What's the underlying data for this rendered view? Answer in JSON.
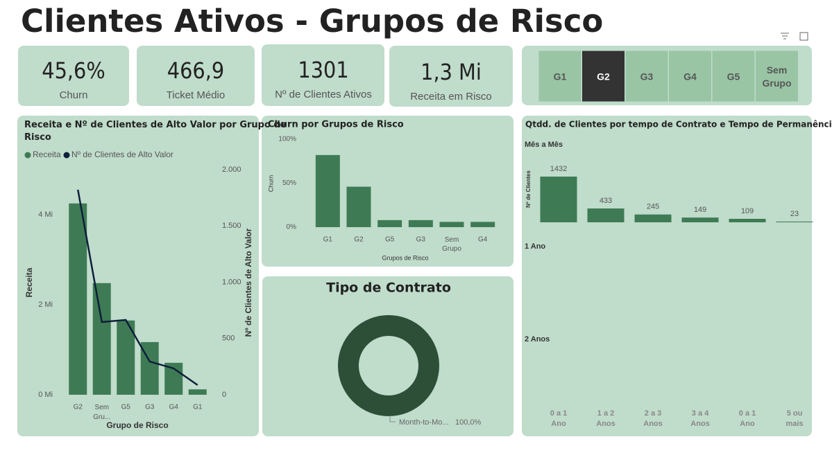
{
  "title": "Clientes Ativos - Grupos de Risco",
  "kpis": [
    {
      "value": "45,6%",
      "label": "Churn"
    },
    {
      "value": "466,9",
      "label": "Ticket Médio"
    },
    {
      "value": "1301",
      "label": "Nº de Clientes Ativos"
    },
    {
      "value": "1,3 Mi",
      "label": "Receita em Risco"
    }
  ],
  "slicer": {
    "options": [
      "G1",
      "G2",
      "G3",
      "G4",
      "G5",
      "Sem Grupo"
    ],
    "selected": "G2"
  },
  "chart_data": [
    {
      "type": "combo",
      "title": "Receita e Nº de Clientes de Alto Valor por Grupo de Risco",
      "categories": [
        "G2",
        "Sem Gru...",
        "G5",
        "G3",
        "G4",
        "G1"
      ],
      "series": [
        {
          "name": "Receita",
          "color": "#3e7b55",
          "kind": "bar",
          "values": [
            4250000,
            2480000,
            1650000,
            1170000,
            710000,
            120000
          ]
        },
        {
          "name": "Nº de Clientes de Alto Valor",
          "color": "#0d1f3a",
          "kind": "line",
          "axis": "y2",
          "values": [
            1822,
            646,
            665,
            295,
            234,
            86
          ]
        }
      ],
      "xlabel": "Grupo de Risco",
      "ylabel": "Receita",
      "y2label": "Nº de Clientes de Alto Valor",
      "ylim": [
        0,
        5000000
      ],
      "yticks": [
        {
          "value": 0,
          "label": "0 Mi"
        },
        {
          "value": 2000000,
          "label": "2 Mi"
        },
        {
          "value": 4000000,
          "label": "4 Mi"
        }
      ],
      "y2lim": [
        0,
        2000
      ],
      "y2ticks": [
        0,
        500,
        {
          "value": 1000,
          "label": "1.000"
        },
        {
          "value": 1500,
          "label": "1.500"
        },
        {
          "value": 2000,
          "label": "2.000"
        }
      ]
    },
    {
      "type": "bar",
      "title": "Churn por Grupos de Risco",
      "categories": [
        "G1",
        "G2",
        "G5",
        "G3",
        "Sem Grupo",
        "G4"
      ],
      "values": [
        82,
        46,
        8,
        8,
        6,
        6
      ],
      "color": "#3e7b55",
      "xlabel": "Grupos de Risco",
      "ylabel": "Churn",
      "ylim": [
        0,
        100
      ],
      "yticks": [
        {
          "value": 0,
          "label": "0%"
        },
        {
          "value": 50,
          "label": "50%"
        },
        {
          "value": 100,
          "label": "100%"
        }
      ]
    },
    {
      "type": "donut",
      "title": "Tipo de Contrato",
      "categories": [
        "Month-to-Mo..."
      ],
      "values": [
        100
      ],
      "value_labels": [
        "100,0%"
      ],
      "colors": [
        "#2d4f38"
      ]
    },
    {
      "type": "bar",
      "title": "Qtdd. de Clientes por tempo de Contrato e Tempo de Permanência",
      "panels": [
        "Mês a Mês",
        "1 Ano",
        "2 Anos"
      ],
      "ylabel": "Nº de Clientes",
      "categories": [
        "0 a 1 Ano",
        "1 a 2 Anos",
        "2 a 3 Anos",
        "3 a 4 Anos",
        "0 a 1 Ano",
        "5 ou mais"
      ],
      "values": [
        1432,
        433,
        245,
        149,
        109,
        23
      ],
      "color": "#3e7b55"
    }
  ]
}
